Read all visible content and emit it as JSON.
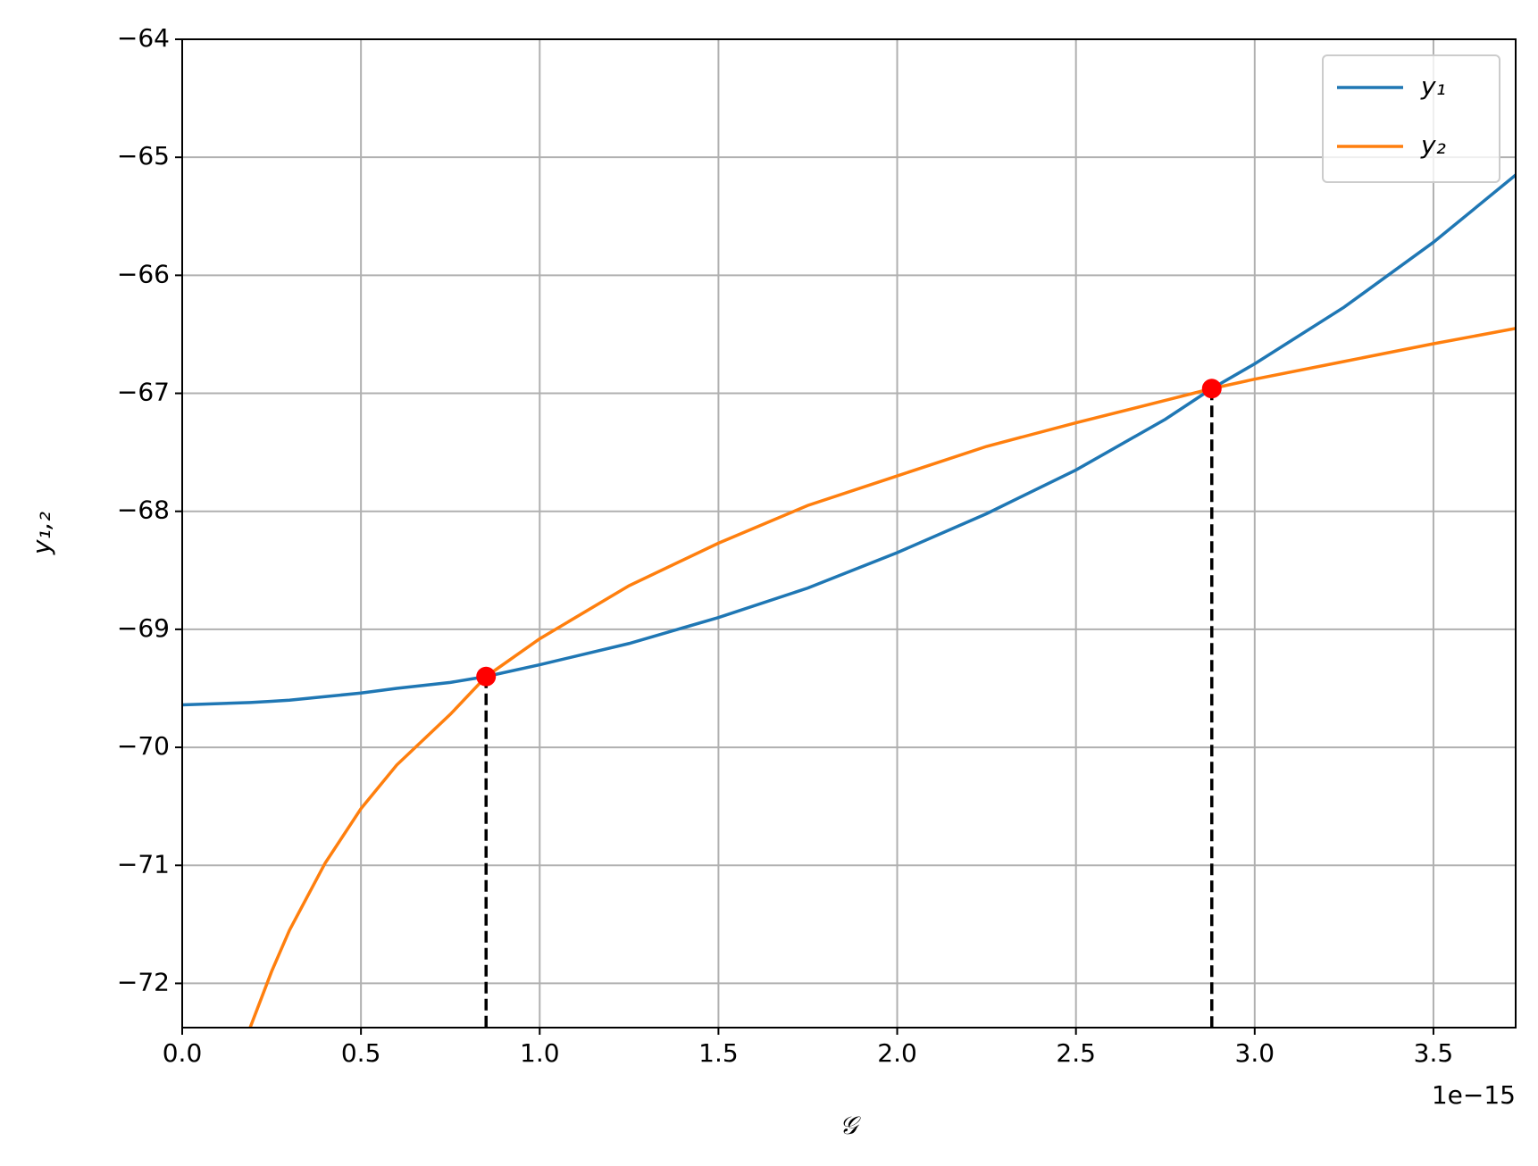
{
  "chart_data": {
    "type": "line",
    "xlabel": "𝒢",
    "ylabel": "y₁,₂",
    "x_offset_label": "1e−15",
    "x": [
      0,
      0.19,
      0.25,
      0.3,
      0.4,
      0.5,
      0.6,
      0.75,
      0.85,
      1.0,
      1.25,
      1.5,
      1.75,
      2.0,
      2.25,
      2.5,
      2.75,
      2.88,
      3.0,
      3.25,
      3.5,
      3.73
    ],
    "series": [
      {
        "name": "y₁",
        "color": "#1f77b4",
        "values": [
          -69.64,
          -69.62,
          -69.61,
          -69.6,
          -69.57,
          -69.54,
          -69.5,
          -69.45,
          -69.4,
          -69.3,
          -69.12,
          -68.9,
          -68.65,
          -68.35,
          -68.02,
          -67.65,
          -67.22,
          -66.96,
          -66.75,
          -66.27,
          -65.72,
          -65.15
        ]
      },
      {
        "name": "y₂",
        "color": "#ff7f0e",
        "values": [
          null,
          -72.375,
          -71.9,
          -71.55,
          -70.98,
          -70.52,
          -70.15,
          -69.72,
          -69.4,
          -69.08,
          -68.63,
          -68.27,
          -67.95,
          -67.7,
          -67.45,
          -67.25,
          -67.06,
          -66.96,
          -66.88,
          -66.73,
          -66.58,
          -66.45
        ]
      }
    ],
    "points": {
      "color": "red",
      "x": [
        0.85,
        2.88
      ],
      "y": [
        -69.4,
        -66.96
      ]
    },
    "xlim": [
      0,
      3.73
    ],
    "ylim": [
      -72.375,
      -64
    ],
    "xticks": [
      {
        "value": 0,
        "label": "0.0"
      },
      0.5,
      {
        "value": 1,
        "label": "1.0"
      },
      1.5,
      {
        "value": 2,
        "label": "2.0"
      },
      2.5,
      {
        "value": 3,
        "label": "3.0"
      },
      3.5
    ],
    "yticks": [
      {
        "value": -72,
        "label": "−72"
      },
      {
        "value": -71,
        "label": "−71"
      },
      {
        "value": -70,
        "label": "−70"
      },
      {
        "value": -69,
        "label": "−69"
      },
      {
        "value": -68,
        "label": "−68"
      },
      {
        "value": -67,
        "label": "−67"
      },
      {
        "value": -66,
        "label": "−66"
      },
      {
        "value": -65,
        "label": "−65"
      },
      {
        "value": -64,
        "label": "−64"
      }
    ],
    "grid": true,
    "legend": "upper right"
  }
}
